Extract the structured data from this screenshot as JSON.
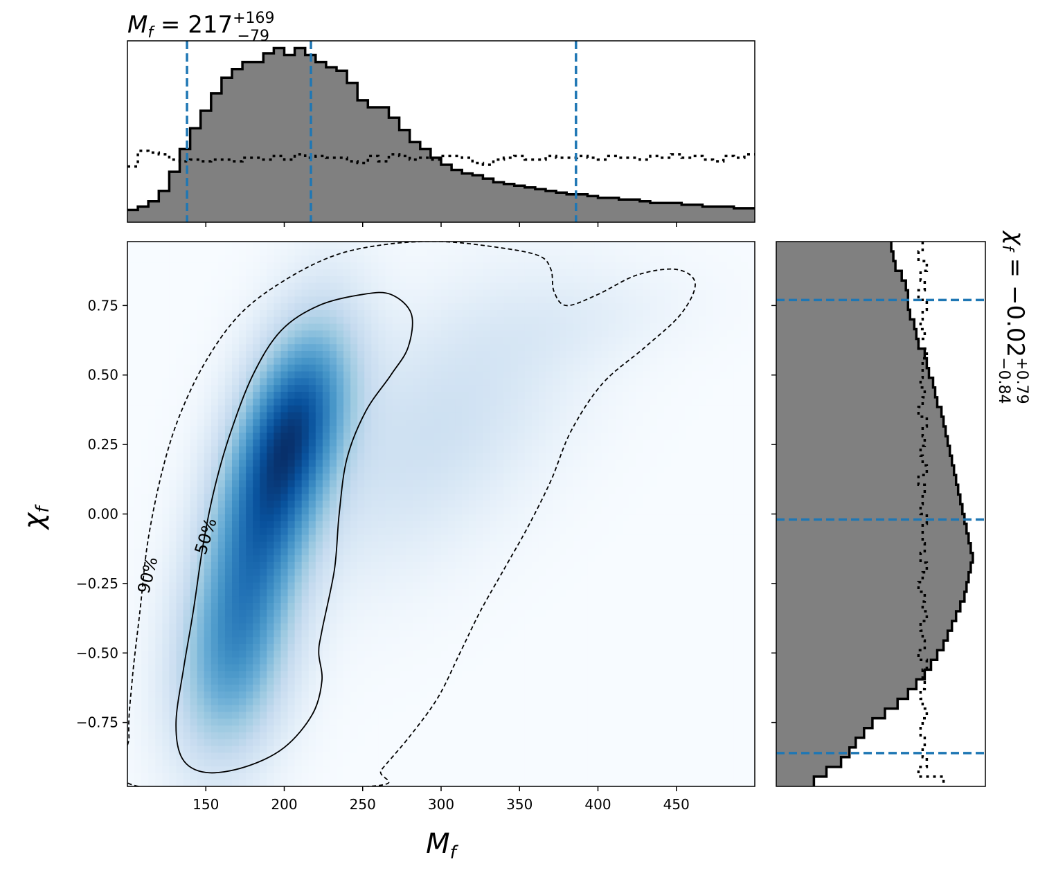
{
  "chart_data": {
    "type": "corner-plot",
    "x_parameter": {
      "xlabel": "M_f",
      "xlim": [
        100,
        500
      ],
      "xticks": [
        150,
        200,
        250,
        300,
        350,
        400,
        450
      ],
      "tick_labels": [
        "150",
        "200",
        "250",
        "300",
        "350",
        "400",
        "450"
      ],
      "summary_title": {
        "symbol": "M",
        "subscript": "f",
        "eq": " = 217",
        "plus": "+169",
        "minus": "−79"
      },
      "quantiles": [
        138,
        217,
        386
      ],
      "posterior_hist": [
        0.07,
        0.09,
        0.12,
        0.18,
        0.29,
        0.42,
        0.54,
        0.64,
        0.74,
        0.83,
        0.88,
        0.92,
        0.92,
        0.97,
        1.0,
        0.96,
        1.0,
        0.96,
        0.92,
        0.89,
        0.87,
        0.8,
        0.7,
        0.66,
        0.66,
        0.6,
        0.53,
        0.46,
        0.42,
        0.37,
        0.33,
        0.3,
        0.28,
        0.27,
        0.25,
        0.23,
        0.22,
        0.21,
        0.2,
        0.19,
        0.18,
        0.17,
        0.16,
        0.16,
        0.15,
        0.14,
        0.14,
        0.13,
        0.13,
        0.12,
        0.11,
        0.11,
        0.11,
        0.1,
        0.1,
        0.09,
        0.09,
        0.09,
        0.08,
        0.08
      ],
      "prior_hist": [
        0.32,
        0.41,
        0.4,
        0.39,
        0.36,
        0.35,
        0.36,
        0.35,
        0.36,
        0.36,
        0.35,
        0.37,
        0.37,
        0.36,
        0.38,
        0.36,
        0.39,
        0.37,
        0.38,
        0.37,
        0.37,
        0.35,
        0.34,
        0.38,
        0.35,
        0.39,
        0.38,
        0.36,
        0.37,
        0.36,
        0.38,
        0.38,
        0.37,
        0.34,
        0.33,
        0.36,
        0.37,
        0.38,
        0.36,
        0.36,
        0.38,
        0.37,
        0.37,
        0.38,
        0.37,
        0.36,
        0.38,
        0.37,
        0.37,
        0.36,
        0.38,
        0.37,
        0.39,
        0.37,
        0.38,
        0.36,
        0.35,
        0.38,
        0.37,
        0.39
      ]
    },
    "y_parameter": {
      "ylabel": "χ_f",
      "ylim": [
        -0.98,
        0.98
      ],
      "yticks": [
        -0.75,
        -0.5,
        -0.25,
        0.0,
        0.25,
        0.5,
        0.75
      ],
      "tick_labels": [
        "−0.75",
        "−0.50",
        "−0.25",
        "0.00",
        "0.25",
        "0.50",
        "0.75"
      ],
      "summary_title": {
        "symbol": "χ",
        "subscript": "f",
        "eq": " = −0.02",
        "plus": "+0.79",
        "minus": "−0.84"
      },
      "quantiles": [
        -0.86,
        -0.02,
        0.77
      ],
      "posterior_hist": [
        0.55,
        0.56,
        0.57,
        0.6,
        0.62,
        0.63,
        0.63,
        0.64,
        0.66,
        0.67,
        0.68,
        0.71,
        0.72,
        0.73,
        0.75,
        0.76,
        0.77,
        0.79,
        0.8,
        0.81,
        0.82,
        0.83,
        0.84,
        0.85,
        0.86,
        0.87,
        0.88,
        0.89,
        0.9,
        0.91,
        0.92,
        0.93,
        0.94,
        0.93,
        0.92,
        0.91,
        0.9,
        0.88,
        0.86,
        0.84,
        0.82,
        0.8,
        0.77,
        0.74,
        0.71,
        0.67,
        0.63,
        0.58,
        0.52,
        0.46,
        0.42,
        0.38,
        0.35,
        0.31,
        0.24,
        0.18
      ],
      "prior_hist": [
        0.7,
        0.68,
        0.72,
        0.69,
        0.71,
        0.68,
        0.72,
        0.7,
        0.69,
        0.71,
        0.68,
        0.72,
        0.7,
        0.7,
        0.69,
        0.71,
        0.7,
        0.68,
        0.72,
        0.7,
        0.71,
        0.69,
        0.7,
        0.72,
        0.68,
        0.71,
        0.7,
        0.69,
        0.72,
        0.7,
        0.7,
        0.71,
        0.69,
        0.72,
        0.7,
        0.68,
        0.71,
        0.7,
        0.72,
        0.69,
        0.7,
        0.71,
        0.68,
        0.72,
        0.7,
        0.71,
        0.69,
        0.7,
        0.72,
        0.7,
        0.69,
        0.71,
        0.7,
        0.72,
        0.68,
        0.8
      ]
    },
    "joint_density": {
      "colormap": "Blues",
      "components": [
        {
          "mx": 190,
          "my": 0.05,
          "sx": 28,
          "sy": 0.38,
          "rho": 0.55,
          "w": 1.0
        },
        {
          "mx": 210,
          "my": 0.35,
          "sx": 24,
          "sy": 0.22,
          "rho": 0.4,
          "w": 0.55
        },
        {
          "mx": 168,
          "my": -0.55,
          "sx": 25,
          "sy": 0.25,
          "rho": 0.2,
          "w": 0.5
        },
        {
          "mx": 295,
          "my": 0.3,
          "sx": 60,
          "sy": 0.35,
          "rho": 0.55,
          "w": 0.22
        },
        {
          "mx": 390,
          "my": 0.7,
          "sx": 50,
          "sy": 0.12,
          "rho": 0.3,
          "w": 0.06
        }
      ],
      "contours": [
        {
          "level": "50%",
          "style": "solid",
          "points": [
            [
              150,
              -0.93
            ],
            [
              135,
              -0.88
            ],
            [
              131,
              -0.75
            ],
            [
              136,
              -0.55
            ],
            [
              142,
              -0.35
            ],
            [
              148,
              -0.12
            ],
            [
              155,
              0.08
            ],
            [
              165,
              0.28
            ],
            [
              180,
              0.5
            ],
            [
              198,
              0.66
            ],
            [
              222,
              0.75
            ],
            [
              250,
              0.79
            ],
            [
              268,
              0.79
            ],
            [
              281,
              0.72
            ],
            [
              279,
              0.6
            ],
            [
              268,
              0.5
            ],
            [
              252,
              0.37
            ],
            [
              240,
              0.2
            ],
            [
              235,
              0.0
            ],
            [
              232,
              -0.2
            ],
            [
              224,
              -0.42
            ],
            [
              222,
              -0.5
            ],
            [
              224,
              -0.6
            ],
            [
              218,
              -0.72
            ],
            [
              200,
              -0.84
            ],
            [
              175,
              -0.91
            ]
          ]
        },
        {
          "level": "90%",
          "style": "dashed",
          "points": [
            [
              107,
              -0.98
            ],
            [
              101,
              -0.8
            ],
            [
              103,
              -0.6
            ],
            [
              108,
              -0.35
            ],
            [
              113,
              -0.1
            ],
            [
              122,
              0.15
            ],
            [
              133,
              0.35
            ],
            [
              150,
              0.55
            ],
            [
              172,
              0.72
            ],
            [
              200,
              0.84
            ],
            [
              232,
              0.93
            ],
            [
              265,
              0.97
            ],
            [
              300,
              0.98
            ],
            [
              335,
              0.96
            ],
            [
              362,
              0.93
            ],
            [
              370,
              0.88
            ],
            [
              372,
              0.8
            ],
            [
              380,
              0.75
            ],
            [
              400,
              0.79
            ],
            [
              425,
              0.86
            ],
            [
              450,
              0.88
            ],
            [
              462,
              0.83
            ],
            [
              453,
              0.72
            ],
            [
              430,
              0.6
            ],
            [
              403,
              0.47
            ],
            [
              383,
              0.3
            ],
            [
              370,
              0.12
            ],
            [
              355,
              -0.05
            ],
            [
              340,
              -0.2
            ],
            [
              325,
              -0.35
            ],
            [
              312,
              -0.5
            ],
            [
              298,
              -0.66
            ],
            [
              280,
              -0.8
            ],
            [
              262,
              -0.92
            ],
            [
              254,
              -0.98
            ]
          ]
        }
      ],
      "contour_labels": [
        {
          "text": "50%",
          "x": 150,
          "y": -0.08,
          "angle": -72
        },
        {
          "text": "90%",
          "x": 113,
          "y": -0.22,
          "angle": -76
        }
      ]
    }
  }
}
